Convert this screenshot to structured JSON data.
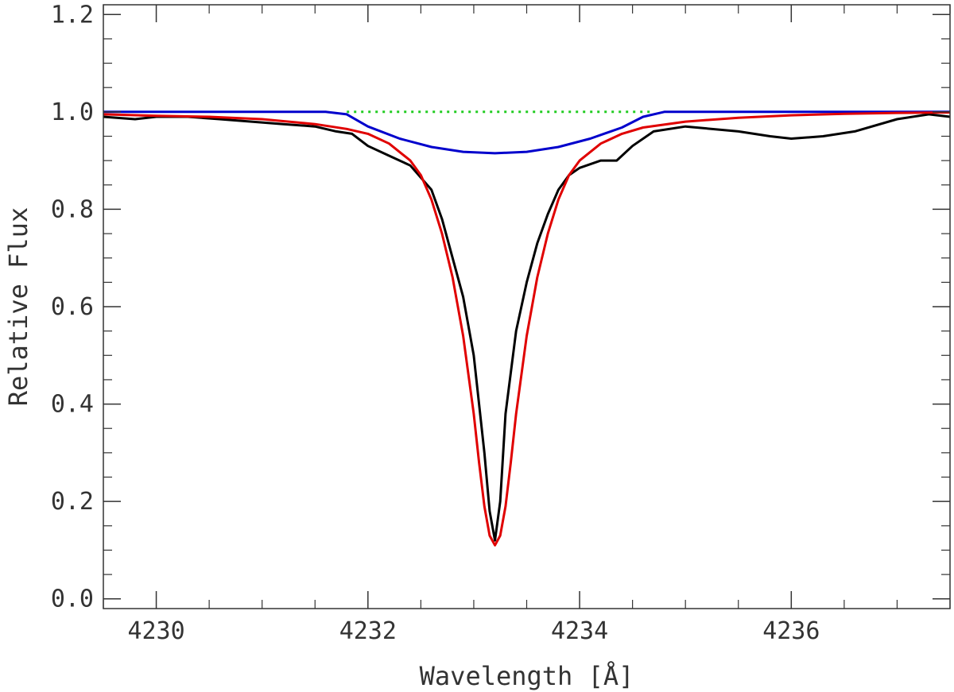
{
  "chart_data": {
    "type": "line",
    "title": "",
    "xlabel": "Wavelength [Å]",
    "ylabel": "Relative Flux",
    "xlim": [
      4229.5,
      4237.5
    ],
    "ylim": [
      -0.02,
      1.22
    ],
    "x_ticks": [
      4230,
      4232,
      4234,
      4236
    ],
    "x_tick_labels": [
      "4230",
      "4232",
      "4234",
      "4236"
    ],
    "y_ticks": [
      0.0,
      0.2,
      0.4,
      0.6,
      0.8,
      1.0,
      1.2
    ],
    "y_tick_labels": [
      "0.0",
      "0.2",
      "0.4",
      "0.6",
      "0.8",
      "1.0",
      "1.2"
    ],
    "grid": false,
    "legend": "none",
    "series": [
      {
        "color": "#000000",
        "style": "solid",
        "x": [
          4229.5,
          4229.8,
          4230.0,
          4230.3,
          4230.6,
          4230.9,
          4231.2,
          4231.5,
          4231.7,
          4231.85,
          4232.0,
          4232.2,
          4232.4,
          4232.6,
          4232.7,
          4232.8,
          4232.9,
          4233.0,
          4233.1,
          4233.15,
          4233.2,
          4233.25,
          4233.3,
          4233.4,
          4233.5,
          4233.6,
          4233.7,
          4233.8,
          4233.9,
          4234.0,
          4234.2,
          4234.35,
          4234.5,
          4234.7,
          4235.0,
          4235.5,
          4235.8,
          4236.0,
          4236.3,
          4236.6,
          4237.0,
          4237.3,
          4237.5
        ],
        "y": [
          0.99,
          0.985,
          0.99,
          0.99,
          0.985,
          0.98,
          0.975,
          0.97,
          0.96,
          0.955,
          0.93,
          0.91,
          0.89,
          0.84,
          0.78,
          0.7,
          0.62,
          0.5,
          0.3,
          0.18,
          0.12,
          0.2,
          0.38,
          0.55,
          0.65,
          0.73,
          0.79,
          0.84,
          0.87,
          0.885,
          0.9,
          0.9,
          0.93,
          0.96,
          0.97,
          0.96,
          0.95,
          0.945,
          0.95,
          0.96,
          0.985,
          0.995,
          0.99
        ]
      },
      {
        "color": "#e00000",
        "style": "solid",
        "x": [
          4229.5,
          4230.0,
          4230.5,
          4231.0,
          4231.5,
          4231.8,
          4232.0,
          4232.2,
          4232.4,
          4232.5,
          4232.6,
          4232.7,
          4232.8,
          4232.9,
          4233.0,
          4233.05,
          4233.1,
          4233.15,
          4233.2,
          4233.25,
          4233.3,
          4233.35,
          4233.4,
          4233.5,
          4233.6,
          4233.7,
          4233.8,
          4233.9,
          4234.0,
          4234.2,
          4234.4,
          4234.6,
          4235.0,
          4235.5,
          4236.0,
          4236.5,
          4237.0,
          4237.5
        ],
        "y": [
          0.995,
          0.992,
          0.99,
          0.985,
          0.975,
          0.965,
          0.955,
          0.935,
          0.9,
          0.87,
          0.82,
          0.75,
          0.66,
          0.54,
          0.38,
          0.28,
          0.19,
          0.13,
          0.11,
          0.13,
          0.19,
          0.28,
          0.38,
          0.54,
          0.66,
          0.75,
          0.82,
          0.87,
          0.9,
          0.935,
          0.955,
          0.968,
          0.98,
          0.988,
          0.993,
          0.996,
          0.998,
          0.999
        ]
      },
      {
        "color": "#0000cc",
        "style": "solid",
        "x": [
          4229.5,
          4231.0,
          4231.6,
          4231.8,
          4232.0,
          4232.3,
          4232.6,
          4232.9,
          4233.2,
          4233.5,
          4233.8,
          4234.1,
          4234.4,
          4234.6,
          4234.8,
          4235.5,
          4237.5
        ],
        "y": [
          1.0,
          1.0,
          1.0,
          0.995,
          0.97,
          0.945,
          0.928,
          0.918,
          0.915,
          0.918,
          0.928,
          0.945,
          0.968,
          0.99,
          1.0,
          1.0,
          1.0
        ]
      },
      {
        "color": "#22cc22",
        "style": "dotted",
        "x": [
          4231.8,
          4234.7
        ],
        "y": [
          1.0,
          1.0
        ]
      }
    ]
  }
}
